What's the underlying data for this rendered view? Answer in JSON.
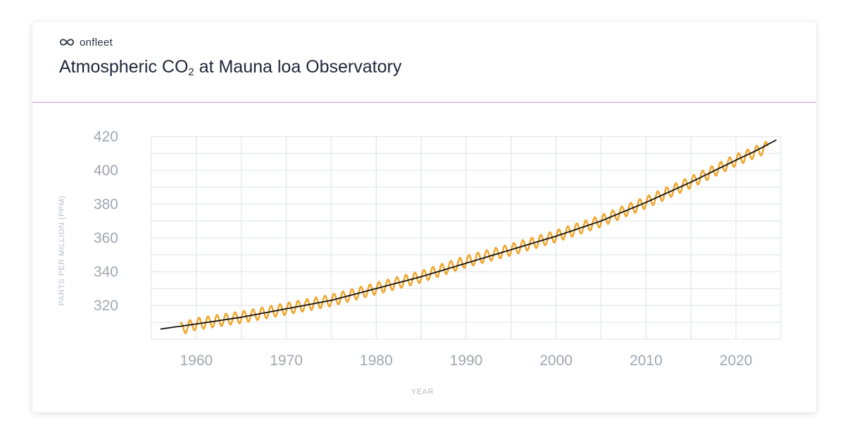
{
  "brand": {
    "name": "onfleet",
    "icon": "infinity-logo-icon"
  },
  "header": {
    "title_main": "Atmospheric CO",
    "title_sub": "2",
    "title_rest": " at Mauna loa Observatory"
  },
  "colors": {
    "monthly": "#f0a830",
    "trend": "#111111",
    "grid": "#e4e6ea",
    "divider": "#c893d4"
  },
  "chart_data": {
    "type": "line",
    "title": "Atmospheric CO2 at Mauna loa Observatory",
    "xlabel": "YEAR",
    "ylabel": "PARTS PER MILLION (PPM)",
    "xlim": [
      1955,
      2025
    ],
    "ylim": [
      300,
      420
    ],
    "x_ticks": [
      1960,
      1970,
      1980,
      1990,
      2000,
      2010,
      2020
    ],
    "y_ticks": [
      320,
      340,
      360,
      380,
      400,
      420
    ],
    "grid": true,
    "legend": "none",
    "seasonal_amplitude_ppm": 3.5,
    "series": [
      {
        "style": "monthly",
        "start": 1958.2,
        "end": 2023.6,
        "x": [
          1958.2,
          1960,
          1965,
          1970,
          1975,
          1980,
          1985,
          1990,
          1995,
          2000,
          2005,
          2010,
          2015,
          2020,
          2023.6
        ],
        "y": [
          306,
          309,
          313,
          318,
          323,
          330,
          337,
          346,
          353,
          361,
          370,
          381,
          393,
          406,
          414
        ]
      },
      {
        "style": "trend",
        "x": [
          1956,
          1960,
          1965,
          1970,
          1975,
          1980,
          1985,
          1990,
          1995,
          2000,
          2005,
          2010,
          2015,
          2020,
          2022,
          2024.5
        ],
        "y": [
          306,
          309,
          313,
          318,
          323,
          330,
          337,
          345,
          353,
          361,
          370,
          381,
          393,
          406,
          411,
          418
        ]
      }
    ]
  }
}
